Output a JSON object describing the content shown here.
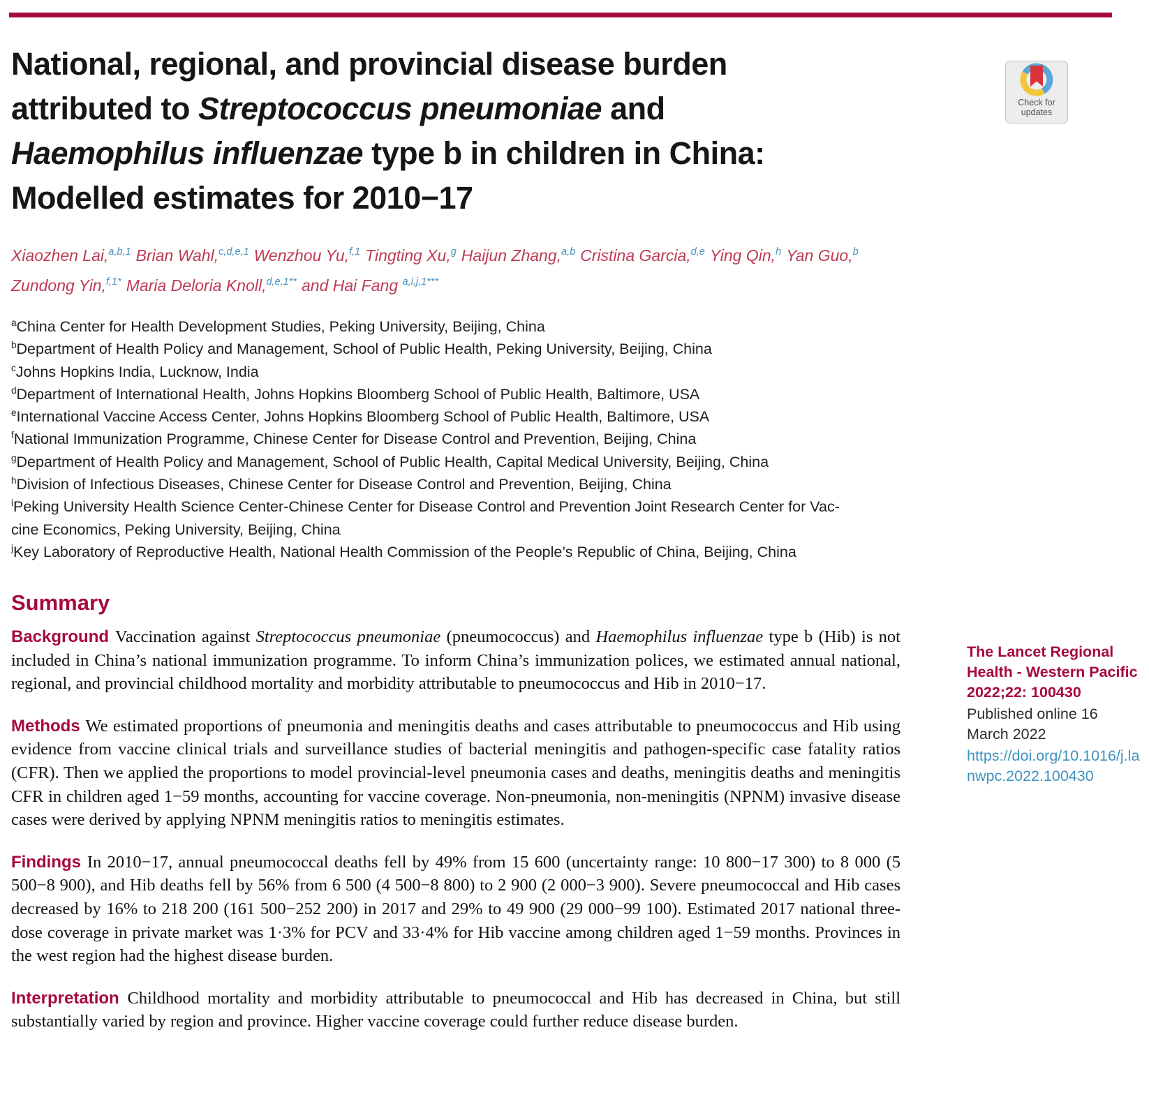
{
  "badge": {
    "line1": "Check for",
    "line2": "updates"
  },
  "title_lines": [
    [
      {
        "text": "National, regional, and provincial disease burden",
        "italic": false
      }
    ],
    [
      {
        "text": "attributed to ",
        "italic": false
      },
      {
        "text": "Streptococcus pneumoniae",
        "italic": true
      },
      {
        "text": " and",
        "italic": false
      }
    ],
    [
      {
        "text": "Haemophilus influenzae",
        "italic": true
      },
      {
        "text": " type b in children in China:",
        "italic": false
      }
    ],
    [
      {
        "text": "Modelled estimates for 2010−17",
        "italic": false
      }
    ]
  ],
  "author_lines": [
    [
      {
        "name": "Xiaozhen Lai,",
        "sup": "a,b,1"
      },
      {
        "name": "Brian Wahl,",
        "sup": "c,d,e,1"
      },
      {
        "name": "Wenzhou Yu,",
        "sup": "f,1"
      },
      {
        "name": "Tingting Xu,",
        "sup": "g"
      },
      {
        "name": "Haijun Zhang,",
        "sup": "a,b"
      },
      {
        "name": "Cristina Garcia,",
        "sup": "d,e"
      },
      {
        "name": "Ying Qin,",
        "sup": "h"
      },
      {
        "name": "Yan Guo,",
        "sup": "b"
      }
    ],
    [
      {
        "name": "Zundong Yin,",
        "sup": "f,1*"
      },
      {
        "name": "Maria Deloria Knoll,",
        "sup": "d,e,1**"
      },
      {
        "name": "and Hai Fang ",
        "sup": "a,i,j,1***"
      }
    ]
  ],
  "affiliations": [
    {
      "sup": "a",
      "text": "China Center for Health Development Studies, Peking University, Beijing, China"
    },
    {
      "sup": "b",
      "text": "Department of Health Policy and Management, School of Public Health, Peking University, Beijing, China"
    },
    {
      "sup": "c",
      "text": "Johns Hopkins India, Lucknow, India"
    },
    {
      "sup": "d",
      "text": "Department of International Health, Johns Hopkins Bloomberg School of Public Health, Baltimore, USA"
    },
    {
      "sup": "e",
      "text": "International Vaccine Access Center, Johns Hopkins Bloomberg School of Public Health, Baltimore, USA"
    },
    {
      "sup": "f",
      "text": "National Immunization Programme, Chinese Center for Disease Control and Prevention, Beijing, China"
    },
    {
      "sup": "g",
      "text": "Department of Health Policy and Management, School of Public Health, Capital Medical University, Beijing, China"
    },
    {
      "sup": "h",
      "text": "Division of Infectious Diseases, Chinese Center for Disease Control and Prevention, Beijing, China"
    },
    {
      "sup": "i",
      "text": "Peking University Health Science Center-Chinese Center for Disease Control and Prevention Joint Research Center for Vac-"
    },
    {
      "sup": "",
      "text": "cine Economics, Peking University, Beijing, China"
    },
    {
      "sup": "j",
      "text": "Key Laboratory of Reproductive Health, National Health Commission of the People’s Republic of China, Beijing, China"
    }
  ],
  "summary": {
    "heading": "Summary",
    "paragraphs": [
      {
        "label": "Background",
        "segments": [
          {
            "text": "Vaccination against ",
            "italic": false
          },
          {
            "text": "Streptococcus pneumoniae",
            "italic": true
          },
          {
            "text": " (pneumococcus) and ",
            "italic": false
          },
          {
            "text": "Haemophilus influenzae",
            "italic": true
          },
          {
            "text": " type b (Hib) is not included in China’s national immunization programme. To inform China’s immunization polices, we estimated annual national, regional, and provincial childhood mortality and morbidity attributable to pneumococcus and Hib in 2010−17.",
            "italic": false
          }
        ]
      },
      {
        "label": "Methods",
        "segments": [
          {
            "text": "We estimated proportions of pneumonia and meningitis deaths and cases attributable to pneumococcus and Hib using evidence from vaccine clinical trials and surveillance studies of bacterial meningitis and pathogen-specific case fatality ratios (CFR). Then we applied the proportions to model provincial-level pneumonia cases and deaths, meningitis deaths and meningitis CFR in children aged 1−59 months, accounting for vaccine coverage. Non-pneumonia, non-meningitis (NPNM) invasive disease cases were derived by applying NPNM meningitis ratios to meningitis estimates.",
            "italic": false
          }
        ]
      },
      {
        "label": "Findings",
        "segments": [
          {
            "text": "In 2010−17, annual pneumococcal deaths fell by 49% from 15 600 (uncertainty range: 10 800−17 300) to 8 000 (5 500−8 900), and Hib deaths fell by 56% from 6 500 (4 500−8 800) to 2 900 (2 000−3 900). Severe pneumococcal and Hib cases decreased by 16% to 218 200 (161 500−252 200) in 2017 and 29% to 49 900 (29 000−99 100). Estimated 2017 national three-dose coverage in private market was 1·3% for PCV and 33·4% for Hib vaccine among children aged 1−59 months. Provinces in the west region had the highest disease burden.",
            "italic": false
          }
        ]
      },
      {
        "label": "Interpretation",
        "segments": [
          {
            "text": "Childhood mortality and morbidity attributable to pneumococcal and Hib has decreased in China, but still substantially varied by region and province. Higher vaccine coverage could further reduce disease burden.",
            "italic": false
          }
        ]
      }
    ]
  },
  "sidebar": {
    "journal": "The Lancet Regional Health - Western Pacific 2022;22: 100430",
    "published": "Published online 16 March 2022",
    "doi": "https://doi.org/10.1016/j.lanwpc.2022.100430"
  },
  "colors": {
    "masthead_crimson": "#A6093D",
    "heading_crimson": "#A6093D",
    "author_red": "#BE3A55",
    "superscript_blue": "#4A90BE",
    "link_blue": "#3E92BC",
    "body_text": "#121212",
    "badge_ring_blue": "#58A7D6",
    "badge_ring_yellow": "#F2C63D",
    "badge_bookmark_red": "#D8343E"
  }
}
